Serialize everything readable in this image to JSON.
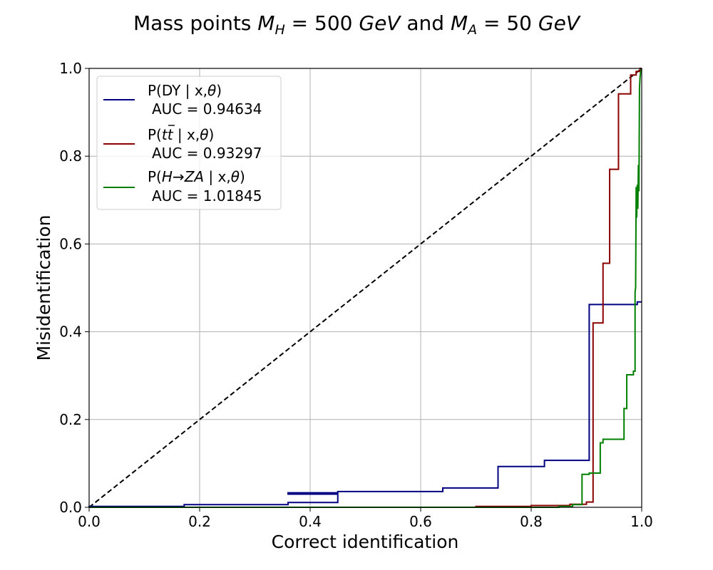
{
  "chart_data": {
    "type": "line",
    "title": "Mass points M_H = 500 GeV and M_A = 50 GeV",
    "title_parts": {
      "prefix": "Mass points ",
      "mh_symbol": "M",
      "mh_sub": "H",
      "mh_value": " = 500 ",
      "mh_unit": "GeV",
      "and": " and ",
      "ma_symbol": "M",
      "ma_sub": "A",
      "ma_value": " = 50 ",
      "ma_unit": "GeV"
    },
    "xlabel": "Correct identification",
    "ylabel": "Misidentification",
    "xlim": [
      0.0,
      1.0
    ],
    "ylim": [
      0.0,
      1.0
    ],
    "xticks": [
      "0.0",
      "0.2",
      "0.4",
      "0.6",
      "0.8",
      "1.0"
    ],
    "yticks": [
      "0.0",
      "0.2",
      "0.4",
      "0.6",
      "0.8",
      "1.0"
    ],
    "grid": true,
    "legend_position": "upper-left",
    "diagonal": {
      "style": "dashed",
      "color": "#000000",
      "x": [
        0,
        1
      ],
      "y": [
        0,
        1
      ]
    },
    "series": [
      {
        "name": "P(DY | x,θ)",
        "name_parts": {
          "prefix": "P(DY | x,",
          "theta": "θ",
          "suffix": ")"
        },
        "auc_label": "AUC = 0.94634",
        "color": "#000080",
        "x": [
          0.0,
          0.0,
          0.172,
          0.172,
          0.36,
          0.36,
          0.45,
          0.45,
          0.36,
          0.36,
          0.45,
          0.45,
          0.64,
          0.64,
          0.74,
          0.74,
          0.824,
          0.824,
          0.905,
          0.905,
          0.992,
          0.992,
          1.0
        ],
        "y": [
          0.0,
          0.002,
          0.002,
          0.006,
          0.006,
          0.011,
          0.011,
          0.03,
          0.03,
          0.033,
          0.033,
          0.036,
          0.036,
          0.044,
          0.044,
          0.093,
          0.093,
          0.107,
          0.107,
          0.462,
          0.462,
          0.468,
          0.468
        ]
      },
      {
        "name": "P(tt̄ | x,θ)",
        "name_parts": {
          "prefix": "P(",
          "tt": "tt",
          "suffix_a": " | x,",
          "theta": "θ",
          "suffix_b": ")"
        },
        "auc_label": "AUC = 0.93297",
        "color": "#8b0000",
        "x": [
          0.0,
          0.7,
          0.7,
          0.8,
          0.8,
          0.87,
          0.87,
          0.9,
          0.9,
          0.912,
          0.912,
          0.93,
          0.93,
          0.942,
          0.942,
          0.958,
          0.958,
          0.98,
          0.98,
          0.99,
          0.99,
          0.997,
          0.997,
          1.0
        ],
        "y": [
          0.0,
          0.0,
          0.002,
          0.002,
          0.004,
          0.004,
          0.007,
          0.007,
          0.012,
          0.012,
          0.42,
          0.42,
          0.556,
          0.556,
          0.77,
          0.77,
          0.942,
          0.942,
          0.985,
          0.985,
          0.993,
          0.993,
          1.0,
          1.0
        ]
      },
      {
        "name": "P(H→ZA | x,θ)",
        "name_parts": {
          "prefix": "P(",
          "h": "H",
          "arrow": "→",
          "za": "ZA",
          "suffix_a": " | x,",
          "theta": "θ",
          "suffix_b": ")"
        },
        "auc_label": "AUC = 1.01845",
        "color": "#008000",
        "x": [
          0.0,
          0.85,
          0.85,
          0.875,
          0.875,
          0.892,
          0.892,
          0.905,
          0.905,
          0.925,
          0.925,
          0.93,
          0.93,
          0.968,
          0.968,
          0.973,
          0.973,
          0.985,
          0.985,
          0.988,
          0.988,
          0.989,
          0.99,
          0.991,
          0.992,
          0.993,
          0.994,
          0.995,
          0.996,
          0.997,
          0.998,
          1.0
        ],
        "y": [
          0.0,
          0.0,
          0.002,
          0.002,
          0.006,
          0.006,
          0.075,
          0.075,
          0.078,
          0.078,
          0.147,
          0.147,
          0.155,
          0.155,
          0.225,
          0.225,
          0.302,
          0.302,
          0.31,
          0.31,
          0.49,
          0.5,
          0.73,
          0.66,
          0.735,
          0.68,
          0.78,
          0.72,
          0.955,
          0.98,
          0.99,
          1.0
        ]
      }
    ]
  }
}
